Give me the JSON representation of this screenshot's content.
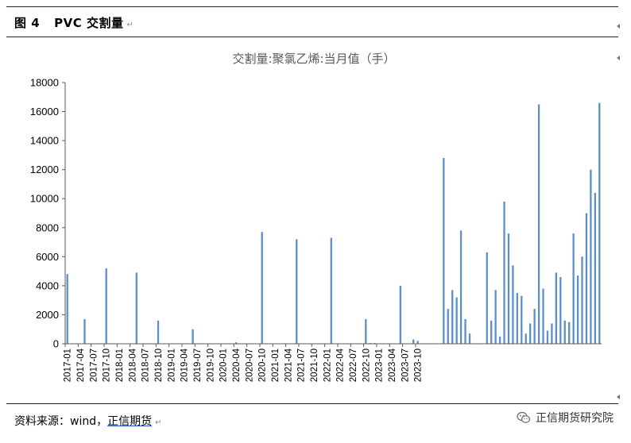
{
  "header": {
    "figure_no": "图 4",
    "figure_title": "PVC 交割量"
  },
  "footer": {
    "source_label": "资料来源：wind，",
    "source_name": "正信期货",
    "brand": "正信期货研究院"
  },
  "colors": {
    "bar": "#5B8FC9",
    "axis": "#595959",
    "title": "#595959"
  },
  "chart_data": {
    "type": "bar",
    "title": "交割量:聚氯乙烯:当月值（手）",
    "xlabel": "",
    "ylabel": "",
    "ylim": [
      0,
      18000
    ],
    "yticks": [
      0,
      2000,
      4000,
      6000,
      8000,
      10000,
      12000,
      14000,
      16000,
      18000
    ],
    "xtick_labels": [
      "2017-01",
      "2017-04",
      "2017-07",
      "2017-10",
      "2018-01",
      "2018-04",
      "2018-07",
      "2018-10",
      "2019-01",
      "2019-04",
      "2019-07",
      "2019-10",
      "2020-01",
      "2020-04",
      "2020-07",
      "2020-10",
      "2021-01",
      "2021-04",
      "2021-07",
      "2021-10",
      "2022-01",
      "2022-04",
      "2022-07",
      "2022-10",
      "2023-01",
      "2023-04",
      "2023-07",
      "2023-10"
    ],
    "start": "2017-01",
    "values": [
      4800,
      0,
      0,
      0,
      1700,
      0,
      0,
      0,
      0,
      5200,
      0,
      0,
      0,
      0,
      0,
      0,
      4900,
      0,
      0,
      0,
      0,
      1600,
      0,
      0,
      0,
      0,
      0,
      0,
      0,
      1000,
      0,
      0,
      0,
      0,
      0,
      0,
      0,
      0,
      0,
      100,
      0,
      0,
      0,
      0,
      0,
      7700,
      0,
      0,
      0,
      0,
      0,
      0,
      0,
      7200,
      0,
      0,
      0,
      0,
      0,
      0,
      0,
      7300,
      0,
      0,
      0,
      0,
      0,
      0,
      0,
      1700,
      50,
      50,
      0,
      0,
      0,
      0,
      0,
      4000,
      0,
      0,
      300,
      200,
      0,
      0,
      0,
      0,
      0,
      12800,
      2400,
      3700,
      3200,
      7800,
      1700,
      700,
      0,
      0,
      0,
      6300,
      1600,
      3700,
      500,
      9800,
      7600,
      5400,
      3500,
      3300,
      700,
      1400,
      2400,
      16500,
      3800,
      900,
      1400,
      4900,
      4600,
      1600,
      1500,
      7600,
      4700,
      6000,
      9000,
      12000,
      10400,
      16600
    ]
  }
}
